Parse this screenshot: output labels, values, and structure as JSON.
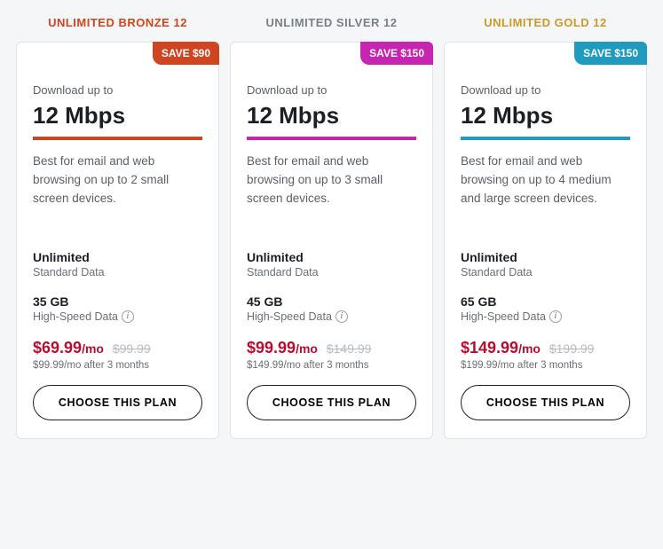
{
  "colors": {
    "background": "#f5f6f7",
    "card_bg": "#ffffff",
    "card_border": "#e1e3e6",
    "text_primary": "#1b1f24",
    "text_muted": "#5a5f66",
    "text_subtle": "#6a6f76",
    "strike": "#b7bbc1"
  },
  "plans": [
    {
      "title": "UNLIMITED BRONZE 12",
      "title_color": "#cf4520",
      "badge": "SAVE $90",
      "badge_bg": "#cf4520",
      "accent": "#cf4520",
      "download_label": "Download up to",
      "speed": "12 Mbps",
      "description": "Best for email and web browsing on up to 2 small screen devices.",
      "unlimited_label": "Unlimited",
      "unlimited_sub": "Standard Data",
      "data_amount": "35 GB",
      "data_sub": "High-Speed Data",
      "price": "$69.99",
      "per": "/mo",
      "price_color": "#ba0c2f",
      "strike_price": "$99.99",
      "after_text": "$99.99/mo after 3 months",
      "cta": "CHOOSE THIS PLAN"
    },
    {
      "title": "UNLIMITED SILVER 12",
      "title_color": "#7a7f87",
      "badge": "SAVE $150",
      "badge_bg": "#c724b1",
      "accent": "#c724b1",
      "download_label": "Download up to",
      "speed": "12 Mbps",
      "description": "Best for email and web browsing on up to 3 small screen devices.",
      "unlimited_label": "Unlimited",
      "unlimited_sub": "Standard Data",
      "data_amount": "45 GB",
      "data_sub": "High-Speed Data",
      "price": "$99.99",
      "per": "/mo",
      "price_color": "#ba0c2f",
      "strike_price": "$149.99",
      "after_text": "$149.99/mo after 3 months",
      "cta": "CHOOSE THIS PLAN"
    },
    {
      "title": "UNLIMITED GOLD 12",
      "title_color": "#c99a2e",
      "badge": "SAVE $150",
      "badge_bg": "#1f9bbf",
      "accent": "#1f9bbf",
      "download_label": "Download up to",
      "speed": "12 Mbps",
      "description": "Best for email and web browsing on up to 4 medium and large screen devices.",
      "unlimited_label": "Unlimited",
      "unlimited_sub": "Standard Data",
      "data_amount": "65 GB",
      "data_sub": "High-Speed Data",
      "price": "$149.99",
      "per": "/mo",
      "price_color": "#ba0c2f",
      "strike_price": "$199.99",
      "after_text": "$199.99/mo after 3 months",
      "cta": "CHOOSE THIS PLAN"
    }
  ]
}
